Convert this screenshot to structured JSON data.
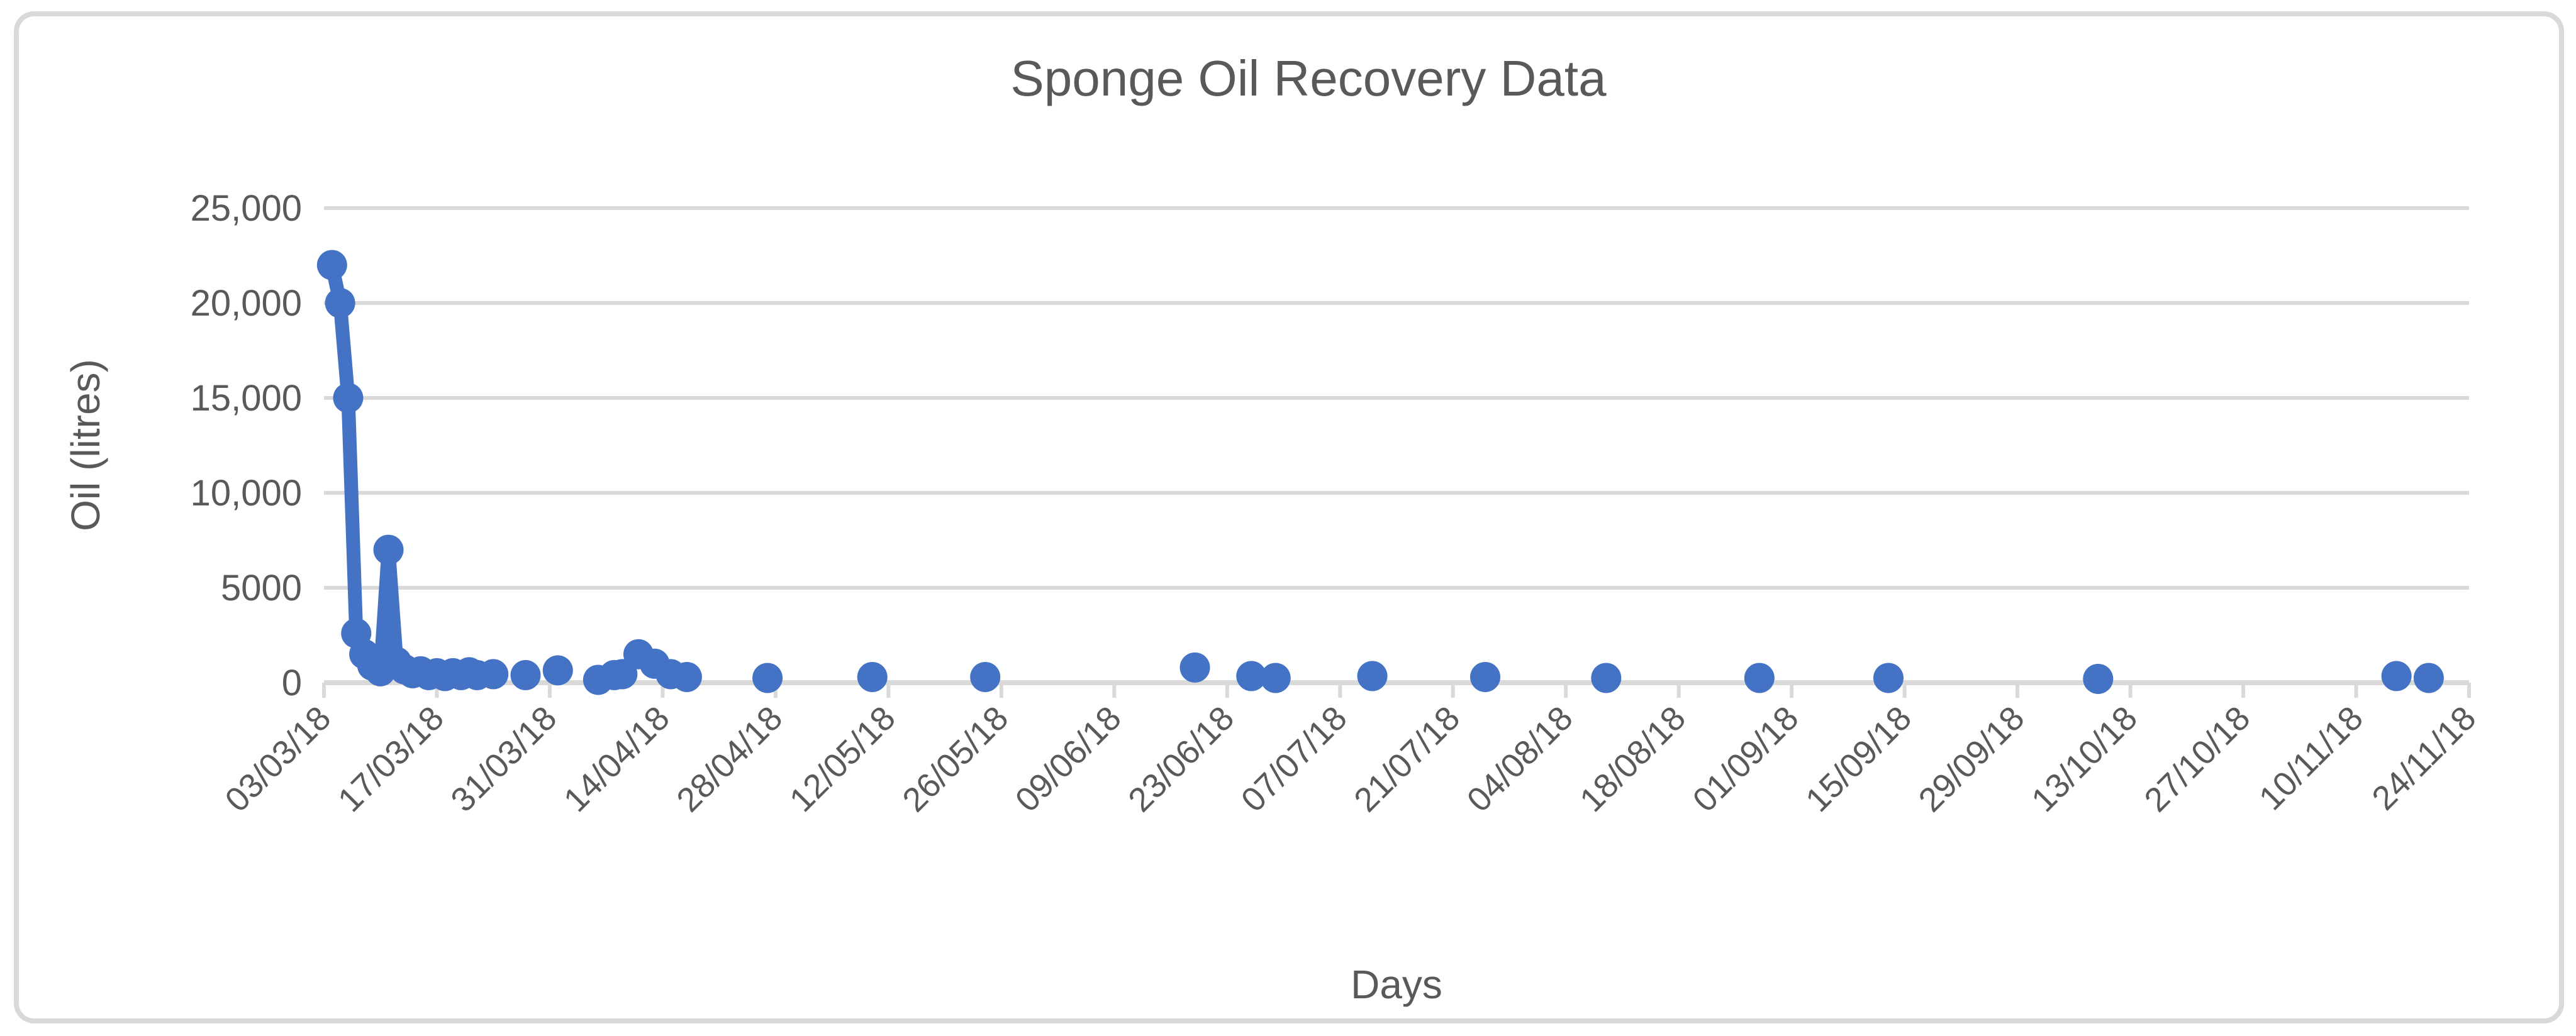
{
  "chart": {
    "title": "Sponge Oil Recovery Data",
    "x_axis_label": "Days",
    "y_axis_label": "Oil (litres)"
  },
  "style": {
    "series_color": "#4472C4",
    "grid_color": "#D9D9D9",
    "axis_color": "#D9D9D9",
    "border_color": "#D9D9D9",
    "text_color": "#595959",
    "background": "#FFFFFF"
  },
  "chart_data": {
    "type": "line",
    "title": "Sponge Oil Recovery Data",
    "xlabel": "Days",
    "ylabel": "Oil (litres)",
    "ylim": [
      0,
      25000
    ],
    "grid": true,
    "legend": false,
    "marker": "circle",
    "x_axis_start_date": "03/03/18",
    "x_tick_interval_days": 14,
    "x_tick_labels": [
      "03/03/18",
      "17/03/18",
      "31/03/18",
      "14/04/18",
      "28/04/18",
      "12/05/18",
      "26/05/18",
      "09/06/18",
      "23/06/18",
      "07/07/18",
      "21/07/18",
      "04/08/18",
      "18/08/18",
      "01/09/18",
      "15/09/18",
      "29/09/18",
      "13/10/18",
      "27/10/18",
      "10/11/18",
      "24/11/18"
    ],
    "y_ticks": [
      {
        "value": 25000,
        "label": "25,000"
      },
      {
        "value": 20000,
        "label": "20,000"
      },
      {
        "value": 15000,
        "label": "15,000"
      },
      {
        "value": 10000,
        "label": "10,000"
      },
      {
        "value": 5000,
        "label": "5000"
      },
      {
        "value": 0,
        "label": "0"
      }
    ],
    "gap_break_days": 3,
    "series": [
      {
        "name": "Oil (litres)",
        "color": "#4472C4",
        "points": [
          {
            "date": "04/03/18",
            "day": 1,
            "value": 22000
          },
          {
            "date": "05/03/18",
            "day": 2,
            "value": 20000
          },
          {
            "date": "06/03/18",
            "day": 3,
            "value": 15000
          },
          {
            "date": "07/03/18",
            "day": 4,
            "value": 2600
          },
          {
            "date": "08/03/18",
            "day": 5,
            "value": 1500
          },
          {
            "date": "09/03/18",
            "day": 6,
            "value": 900
          },
          {
            "date": "10/03/18",
            "day": 7,
            "value": 600
          },
          {
            "date": "11/03/18",
            "day": 8,
            "value": 7000
          },
          {
            "date": "12/03/18",
            "day": 9,
            "value": 1100
          },
          {
            "date": "13/03/18",
            "day": 10,
            "value": 700
          },
          {
            "date": "14/03/18",
            "day": 11,
            "value": 500
          },
          {
            "date": "15/03/18",
            "day": 12,
            "value": 600
          },
          {
            "date": "16/03/18",
            "day": 13,
            "value": 400
          },
          {
            "date": "17/03/18",
            "day": 14,
            "value": 500
          },
          {
            "date": "18/03/18",
            "day": 15,
            "value": 350
          },
          {
            "date": "19/03/18",
            "day": 16,
            "value": 500
          },
          {
            "date": "20/03/18",
            "day": 17,
            "value": 400
          },
          {
            "date": "21/03/18",
            "day": 18,
            "value": 550
          },
          {
            "date": "22/03/18",
            "day": 19,
            "value": 400
          },
          {
            "date": "24/03/18",
            "day": 21,
            "value": 450
          },
          {
            "date": "28/03/18",
            "day": 25,
            "value": 400
          },
          {
            "date": "01/04/18",
            "day": 29,
            "value": 650
          },
          {
            "date": "06/04/18",
            "day": 34,
            "value": 150
          },
          {
            "date": "08/04/18",
            "day": 36,
            "value": 400
          },
          {
            "date": "09/04/18",
            "day": 37,
            "value": 450
          },
          {
            "date": "11/04/18",
            "day": 39,
            "value": 1500
          },
          {
            "date": "13/04/18",
            "day": 41,
            "value": 1000
          },
          {
            "date": "15/04/18",
            "day": 43,
            "value": 450
          },
          {
            "date": "17/04/18",
            "day": 45,
            "value": 300
          },
          {
            "date": "27/04/18",
            "day": 55,
            "value": 250
          },
          {
            "date": "10/05/18",
            "day": 68,
            "value": 300
          },
          {
            "date": "24/05/18",
            "day": 82,
            "value": 300
          },
          {
            "date": "19/06/18",
            "day": 108,
            "value": 800
          },
          {
            "date": "26/06/18",
            "day": 115,
            "value": 350
          },
          {
            "date": "29/06/18",
            "day": 118,
            "value": 250
          },
          {
            "date": "11/07/18",
            "day": 130,
            "value": 350
          },
          {
            "date": "25/07/18",
            "day": 144,
            "value": 300
          },
          {
            "date": "09/08/18",
            "day": 159,
            "value": 250
          },
          {
            "date": "28/08/18",
            "day": 178,
            "value": 250
          },
          {
            "date": "13/09/18",
            "day": 194,
            "value": 250
          },
          {
            "date": "09/10/18",
            "day": 220,
            "value": 200
          },
          {
            "date": "15/11/18",
            "day": 257,
            "value": 350
          },
          {
            "date": "19/11/18",
            "day": 261,
            "value": 250
          }
        ]
      }
    ]
  }
}
